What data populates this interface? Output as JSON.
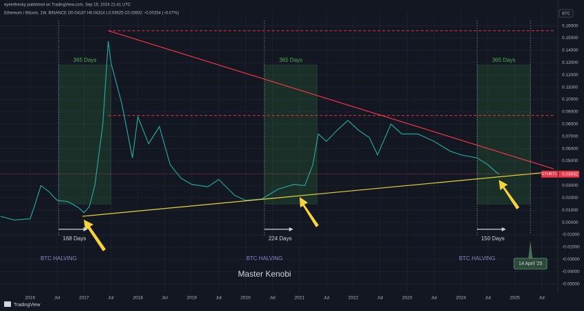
{
  "chart_data": {
    "type": "line",
    "header": "eyeinthesky published on TradingView.com, Sep 15, 2024 21:41 UTC",
    "subtitle": "Ethereum / Bitcoin, 1W, BINANCE  O0.04187  H0.04314  L0.03925  C0.03932  −0.00254 (−6.07%)",
    "currency": "BTC",
    "footer": "TradingView",
    "watermark": "Master Kenobi",
    "series": [
      {
        "name": "ETHBTC",
        "color": "#26a69a",
        "x": [
          2015.45,
          2015.7,
          2016.0,
          2016.1,
          2016.2,
          2016.35,
          2016.5,
          2016.7,
          2016.9,
          2017.0,
          2017.1,
          2017.2,
          2017.35,
          2017.45,
          2017.5,
          2017.7,
          2017.9,
          2018.0,
          2018.2,
          2018.4,
          2018.6,
          2018.8,
          2019.0,
          2019.3,
          2019.5,
          2019.8,
          2020.0,
          2020.3,
          2020.6,
          2020.9,
          2021.1,
          2021.25,
          2021.35,
          2021.5,
          2021.7,
          2021.9,
          2022.1,
          2022.3,
          2022.45,
          2022.7,
          2022.9,
          2023.2,
          2023.5,
          2023.8,
          2024.0,
          2024.3,
          2024.5,
          2024.65,
          2024.71
        ],
        "values": [
          0.005,
          0.002,
          0.003,
          0.016,
          0.03,
          0.025,
          0.018,
          0.017,
          0.012,
          0.008,
          0.013,
          0.03,
          0.08,
          0.1475,
          0.13,
          0.097,
          0.0525,
          0.086,
          0.064,
          0.078,
          0.047,
          0.036,
          0.031,
          0.029,
          0.035,
          0.022,
          0.018,
          0.019,
          0.027,
          0.031,
          0.03,
          0.047,
          0.072,
          0.066,
          0.075,
          0.083,
          0.075,
          0.069,
          0.055,
          0.08,
          0.072,
          0.072,
          0.066,
          0.058,
          0.055,
          0.0525,
          0.047,
          0.041,
          0.03932
        ]
      }
    ],
    "last_price": 0.03932,
    "trendlines": [
      {
        "color": "#f23645",
        "x": [
          2017.45,
          2025.72
        ],
        "values": [
          0.156,
          0.0436
        ]
      },
      {
        "color": "#e8d63a",
        "x": [
          2016.97,
          2025.72
        ],
        "values": [
          0.005,
          0.0413
        ]
      }
    ],
    "levels": [
      {
        "value": 0.156,
        "x": [
          2017.45,
          2025.72
        ]
      },
      {
        "value": 0.087,
        "x": [
          2017.45,
          2025.72
        ]
      }
    ],
    "zones": [
      {
        "label": "365 Days",
        "x": [
          2016.53,
          2017.5
        ],
        "values": [
          0.015,
          0.128
        ]
      },
      {
        "label": "365 Days",
        "x": [
          2020.35,
          2021.33
        ],
        "values": [
          0.015,
          0.128
        ]
      },
      {
        "label": "365 Days",
        "x": [
          2024.3,
          2025.29
        ],
        "values": [
          0.015,
          0.128
        ]
      }
    ],
    "halvings": [
      {
        "x": 2016.53,
        "label": "BTC HALVING",
        "days": "168 Days"
      },
      {
        "x": 2020.35,
        "label": "BTC HALVING",
        "days": "224 Days"
      },
      {
        "x": 2024.3,
        "label": "BTC HALVING",
        "days": "150 Days"
      }
    ],
    "target": {
      "x": 2025.29,
      "label": "14 April '25"
    },
    "xlim": [
      2015.44,
      2025.8
    ],
    "ylim": [
      -0.0603,
      0.1726
    ],
    "xticks": [
      2016,
      {
        "value": 2016.5,
        "label": "Jul"
      },
      2017,
      {
        "value": 2017.5,
        "label": "Jul"
      },
      2018,
      {
        "value": 2018.5,
        "label": "Jul"
      },
      2019,
      {
        "value": 2019.5,
        "label": "Jul"
      },
      2020,
      {
        "value": 2020.5,
        "label": "Jul"
      },
      2021,
      {
        "value": 2021.5,
        "label": "Jul"
      },
      2022,
      {
        "value": 2022.5,
        "label": "Jul"
      },
      2023,
      {
        "value": 2023.5,
        "label": "Jul"
      },
      2024,
      {
        "value": 2024.5,
        "label": "Jul"
      },
      2025,
      {
        "value": 2025.5,
        "label": "Jul"
      }
    ],
    "yticks": [
      {
        "value": 0.16,
        "label": "0.16000"
      },
      {
        "value": 0.15,
        "label": "0.15000"
      },
      {
        "value": 0.14,
        "label": "0.14000"
      },
      {
        "value": 0.13,
        "label": "0.13000"
      },
      {
        "value": 0.12,
        "label": "0.12000"
      },
      {
        "value": 0.11,
        "label": "0.11000"
      },
      {
        "value": 0.1,
        "label": "0.10000"
      },
      {
        "value": 0.09,
        "label": "0.09000"
      },
      {
        "value": 0.08,
        "label": "0.08000"
      },
      {
        "value": 0.07,
        "label": "0.07000"
      },
      {
        "value": 0.06,
        "label": "0.06000"
      },
      {
        "value": 0.05,
        "label": "0.05000"
      },
      {
        "value": 0.04,
        "label": "0.04000"
      },
      {
        "value": 0.03,
        "label": "0.03000"
      },
      {
        "value": 0.02,
        "label": "0.02000"
      },
      {
        "value": 0.01,
        "label": "0.01000"
      },
      {
        "value": 0,
        "label": "0.00000"
      },
      {
        "value": -0.01,
        "label": "-0.01000"
      },
      {
        "value": -0.02,
        "label": "-0.02000"
      },
      {
        "value": -0.03,
        "label": "-0.03000"
      },
      {
        "value": -0.04,
        "label": "-0.04000"
      },
      {
        "value": -0.05,
        "label": "-0.05000"
      }
    ],
    "grid": true
  }
}
